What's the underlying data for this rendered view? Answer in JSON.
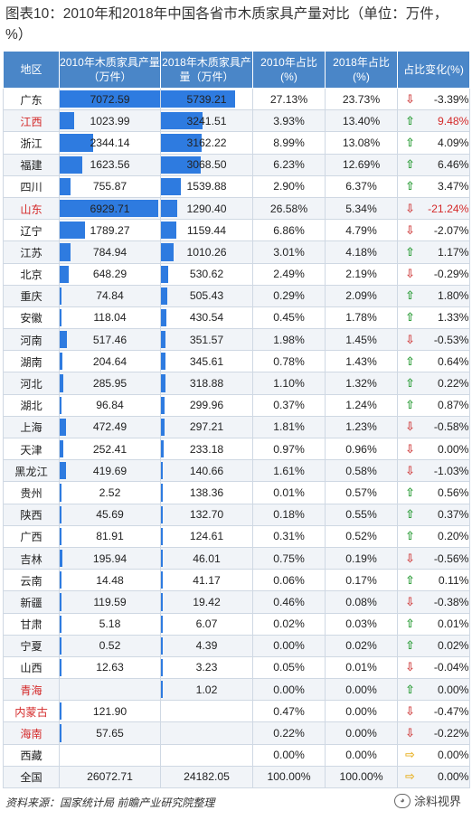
{
  "title": "图表10：2010年和2018年中国各省市木质家具产量对比（单位：万件，%）",
  "headers": [
    "地区",
    "2010年木质家具产量（万件）",
    "2018年木质家具产量（万件）",
    "2010年占比(%)",
    "2018年占比(%)",
    "占比变化(%)"
  ],
  "colors": {
    "header_bg": "#4a86c8",
    "bar": "#2e7be0",
    "up": "#2e9e3a",
    "down": "#d24a4a",
    "flat": "#e8b227",
    "red_text": "#d42a2a"
  },
  "bar_max": 7072.59,
  "rows": [
    {
      "region": "广东",
      "v2010": "7072.59",
      "v2018": "5739.21",
      "p2010": "27.13%",
      "p2018": "23.73%",
      "chg": "-3.39%",
      "dir": "down",
      "red": false,
      "chg_red": false
    },
    {
      "region": "江西",
      "v2010": "1023.99",
      "v2018": "3241.51",
      "p2010": "3.93%",
      "p2018": "13.40%",
      "chg": "9.48%",
      "dir": "up",
      "red": true,
      "chg_red": true
    },
    {
      "region": "浙江",
      "v2010": "2344.14",
      "v2018": "3162.22",
      "p2010": "8.99%",
      "p2018": "13.08%",
      "chg": "4.09%",
      "dir": "up",
      "red": false,
      "chg_red": false
    },
    {
      "region": "福建",
      "v2010": "1623.56",
      "v2018": "3068.50",
      "p2010": "6.23%",
      "p2018": "12.69%",
      "chg": "6.46%",
      "dir": "up",
      "red": false,
      "chg_red": false
    },
    {
      "region": "四川",
      "v2010": "755.87",
      "v2018": "1539.88",
      "p2010": "2.90%",
      "p2018": "6.37%",
      "chg": "3.47%",
      "dir": "up",
      "red": false,
      "chg_red": false
    },
    {
      "region": "山东",
      "v2010": "6929.71",
      "v2018": "1290.40",
      "p2010": "26.58%",
      "p2018": "5.34%",
      "chg": "-21.24%",
      "dir": "down",
      "red": true,
      "chg_red": true
    },
    {
      "region": "辽宁",
      "v2010": "1789.27",
      "v2018": "1159.44",
      "p2010": "6.86%",
      "p2018": "4.79%",
      "chg": "-2.07%",
      "dir": "down",
      "red": false,
      "chg_red": false
    },
    {
      "region": "江苏",
      "v2010": "784.94",
      "v2018": "1010.26",
      "p2010": "3.01%",
      "p2018": "4.18%",
      "chg": "1.17%",
      "dir": "up",
      "red": false,
      "chg_red": false
    },
    {
      "region": "北京",
      "v2010": "648.29",
      "v2018": "530.62",
      "p2010": "2.49%",
      "p2018": "2.19%",
      "chg": "-0.29%",
      "dir": "down",
      "red": false,
      "chg_red": false
    },
    {
      "region": "重庆",
      "v2010": "74.84",
      "v2018": "505.43",
      "p2010": "0.29%",
      "p2018": "2.09%",
      "chg": "1.80%",
      "dir": "up",
      "red": false,
      "chg_red": false
    },
    {
      "region": "安徽",
      "v2010": "118.04",
      "v2018": "430.54",
      "p2010": "0.45%",
      "p2018": "1.78%",
      "chg": "1.33%",
      "dir": "up",
      "red": false,
      "chg_red": false
    },
    {
      "region": "河南",
      "v2010": "517.46",
      "v2018": "351.57",
      "p2010": "1.98%",
      "p2018": "1.45%",
      "chg": "-0.53%",
      "dir": "down",
      "red": false,
      "chg_red": false
    },
    {
      "region": "湖南",
      "v2010": "204.64",
      "v2018": "345.61",
      "p2010": "0.78%",
      "p2018": "1.43%",
      "chg": "0.64%",
      "dir": "up",
      "red": false,
      "chg_red": false
    },
    {
      "region": "河北",
      "v2010": "285.95",
      "v2018": "318.88",
      "p2010": "1.10%",
      "p2018": "1.32%",
      "chg": "0.22%",
      "dir": "up",
      "red": false,
      "chg_red": false
    },
    {
      "region": "湖北",
      "v2010": "96.84",
      "v2018": "299.96",
      "p2010": "0.37%",
      "p2018": "1.24%",
      "chg": "0.87%",
      "dir": "up",
      "red": false,
      "chg_red": false
    },
    {
      "region": "上海",
      "v2010": "472.49",
      "v2018": "297.21",
      "p2010": "1.81%",
      "p2018": "1.23%",
      "chg": "-0.58%",
      "dir": "down",
      "red": false,
      "chg_red": false
    },
    {
      "region": "天津",
      "v2010": "252.41",
      "v2018": "233.18",
      "p2010": "0.97%",
      "p2018": "0.96%",
      "chg": "0.00%",
      "dir": "down",
      "red": false,
      "chg_red": false
    },
    {
      "region": "黑龙江",
      "v2010": "419.69",
      "v2018": "140.66",
      "p2010": "1.61%",
      "p2018": "0.58%",
      "chg": "-1.03%",
      "dir": "down",
      "red": false,
      "chg_red": false
    },
    {
      "region": "贵州",
      "v2010": "2.52",
      "v2018": "138.36",
      "p2010": "0.01%",
      "p2018": "0.57%",
      "chg": "0.56%",
      "dir": "up",
      "red": false,
      "chg_red": false
    },
    {
      "region": "陕西",
      "v2010": "45.69",
      "v2018": "132.70",
      "p2010": "0.18%",
      "p2018": "0.55%",
      "chg": "0.37%",
      "dir": "up",
      "red": false,
      "chg_red": false
    },
    {
      "region": "广西",
      "v2010": "81.91",
      "v2018": "124.61",
      "p2010": "0.31%",
      "p2018": "0.52%",
      "chg": "0.20%",
      "dir": "up",
      "red": false,
      "chg_red": false
    },
    {
      "region": "吉林",
      "v2010": "195.94",
      "v2018": "46.01",
      "p2010": "0.75%",
      "p2018": "0.19%",
      "chg": "-0.56%",
      "dir": "down",
      "red": false,
      "chg_red": false
    },
    {
      "region": "云南",
      "v2010": "14.48",
      "v2018": "41.17",
      "p2010": "0.06%",
      "p2018": "0.17%",
      "chg": "0.11%",
      "dir": "up",
      "red": false,
      "chg_red": false
    },
    {
      "region": "新疆",
      "v2010": "119.59",
      "v2018": "19.42",
      "p2010": "0.46%",
      "p2018": "0.08%",
      "chg": "-0.38%",
      "dir": "down",
      "red": false,
      "chg_red": false
    },
    {
      "region": "甘肃",
      "v2010": "5.18",
      "v2018": "6.07",
      "p2010": "0.02%",
      "p2018": "0.03%",
      "chg": "0.01%",
      "dir": "up",
      "red": false,
      "chg_red": false
    },
    {
      "region": "宁夏",
      "v2010": "0.52",
      "v2018": "4.39",
      "p2010": "0.00%",
      "p2018": "0.02%",
      "chg": "0.02%",
      "dir": "up",
      "red": false,
      "chg_red": false
    },
    {
      "region": "山西",
      "v2010": "12.63",
      "v2018": "3.23",
      "p2010": "0.05%",
      "p2018": "0.01%",
      "chg": "-0.04%",
      "dir": "down",
      "red": false,
      "chg_red": false
    },
    {
      "region": "青海",
      "v2010": "",
      "v2018": "1.02",
      "p2010": "0.00%",
      "p2018": "0.00%",
      "chg": "0.00%",
      "dir": "up",
      "red": true,
      "chg_red": false
    },
    {
      "region": "内蒙古",
      "v2010": "121.90",
      "v2018": "",
      "p2010": "0.47%",
      "p2018": "0.00%",
      "chg": "-0.47%",
      "dir": "down",
      "red": true,
      "chg_red": false
    },
    {
      "region": "海南",
      "v2010": "57.65",
      "v2018": "",
      "p2010": "0.22%",
      "p2018": "0.00%",
      "chg": "-0.22%",
      "dir": "down",
      "red": true,
      "chg_red": false
    },
    {
      "region": "西藏",
      "v2010": "",
      "v2018": "",
      "p2010": "0.00%",
      "p2018": "0.00%",
      "chg": "0.00%",
      "dir": "flat",
      "red": false,
      "chg_red": false
    },
    {
      "region": "全国",
      "v2010": "26072.71",
      "v2018": "24182.05",
      "p2010": "100.00%",
      "p2018": "100.00%",
      "chg": "0.00%",
      "dir": "flat",
      "red": false,
      "chg_red": false,
      "total": true
    }
  ],
  "footer": "资料来源：国家统计局 前瞻产业研究院整理",
  "brand": "涂料视界",
  "brand_icon": "wechat-icon"
}
